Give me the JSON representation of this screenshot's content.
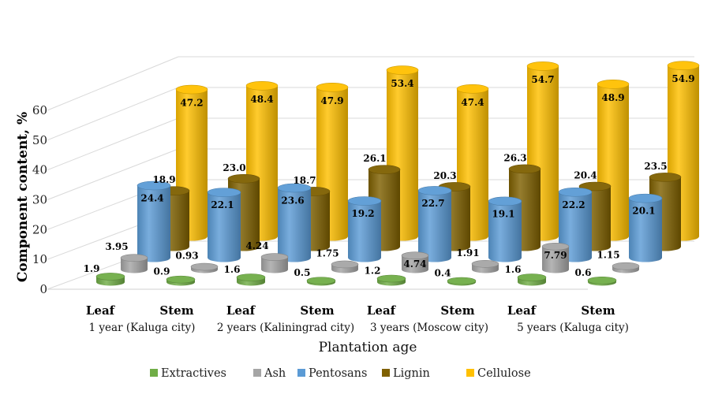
{
  "chart_data": {
    "type": "bar",
    "subtype": "3d-cylinder",
    "title": "",
    "xlabel": "Plantation age",
    "ylabel": "Component content, %",
    "ylim": [
      0,
      60
    ],
    "yticks": [
      0,
      10,
      20,
      30,
      40,
      50,
      60
    ],
    "grid": true,
    "legend_position": "bottom",
    "categories": [
      "Leaf",
      "Stem",
      "Leaf",
      "Stem",
      "Leaf",
      "Stem",
      "Leaf",
      "Stem"
    ],
    "groups": [
      "1 year (Kaluga city)",
      "2 years (Kaliningrad city)",
      "3 years (Moscow city)",
      "5 years (Kaluga city)"
    ],
    "series": [
      {
        "name": "Extractives",
        "color": "#70ad47",
        "values": [
          1.9,
          0.9,
          1.6,
          0.5,
          1.2,
          0.4,
          1.6,
          0.6
        ],
        "labels": [
          "1.9",
          "0.9",
          "1.6",
          "0.5",
          "1.2",
          "0.4",
          "1.6",
          "0.6"
        ]
      },
      {
        "name": "Ash",
        "color": "#a5a5a5",
        "values": [
          3.95,
          0.93,
          4.24,
          1.75,
          4.74,
          1.91,
          7.79,
          1.15
        ],
        "labels": [
          "3.95",
          "0.93",
          "4.24",
          "1.75",
          "4.74",
          "1.91",
          "7.79",
          "1.15"
        ]
      },
      {
        "name": "Pentosans",
        "color": "#5b9bd5",
        "values": [
          24.4,
          22.1,
          23.6,
          19.2,
          22.7,
          19.1,
          22.2,
          20.1
        ],
        "labels": [
          "24.4",
          "22.1",
          "23.6",
          "19.2",
          "22.7",
          "19.1",
          "22.2",
          "20.1"
        ]
      },
      {
        "name": "Lignin",
        "color": "#7f6000",
        "values": [
          18.9,
          23.0,
          18.7,
          26.1,
          20.3,
          26.3,
          20.4,
          23.5
        ],
        "labels": [
          "18.9",
          "23.0",
          "18.7",
          "26.1",
          "20.3",
          "26.3",
          "20.4",
          "23.5"
        ]
      },
      {
        "name": "Cellulose",
        "color": "#ffc000",
        "values": [
          47.2,
          48.4,
          47.9,
          53.4,
          47.4,
          54.7,
          48.9,
          54.9
        ],
        "labels": [
          "47.2",
          "48.4",
          "47.9",
          "53.4",
          "47.4",
          "54.7",
          "48.9",
          "54.9"
        ]
      }
    ]
  }
}
